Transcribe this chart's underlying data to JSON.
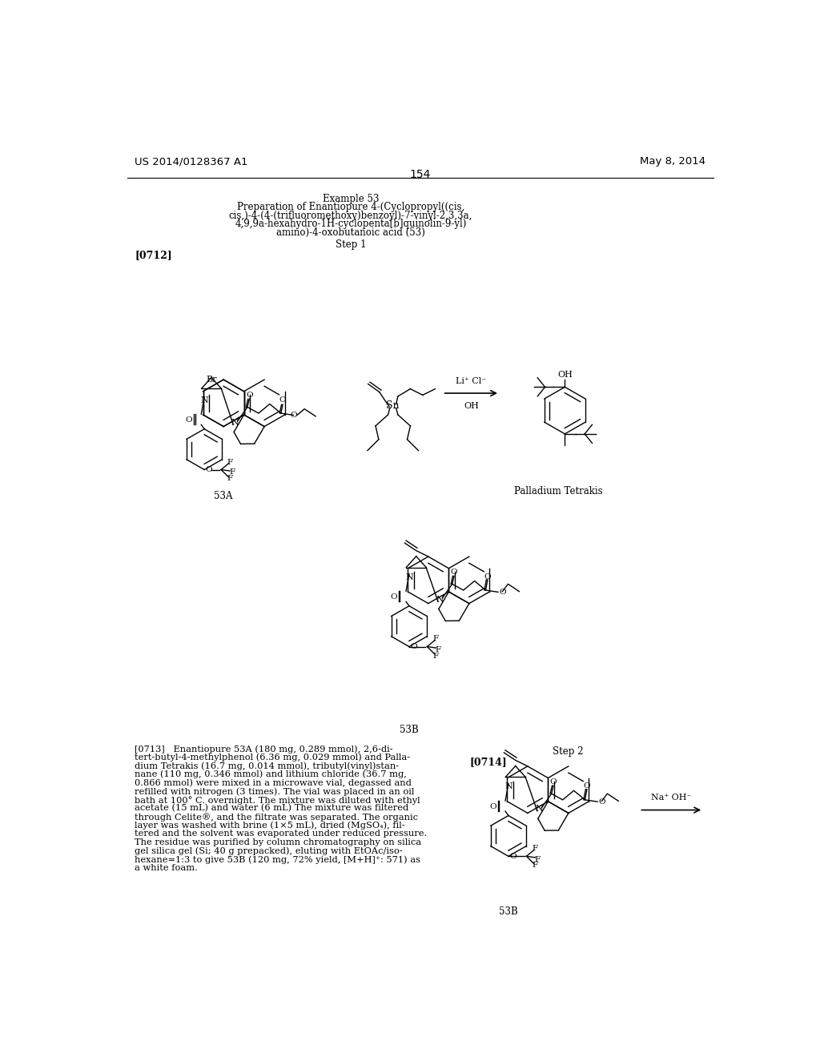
{
  "page_number": "154",
  "patent_number": "US 2014/0128367 A1",
  "patent_date": "May 8, 2014",
  "example_title": "Example 53",
  "preparation_text_lines": [
    "Preparation of Enantiopure 4-(Cyclopropyl((cis,",
    "cis,)-4-(4-(trifluoromethoxy)benzoyl)-7-vinyl-2,3,3a,",
    "4,9,9a-hexahydro-1H-cyclopenta[b]quinolin-9-yl)",
    "amino)-4-oxobutanoic acid (53)"
  ],
  "step1_text": "Step 1",
  "step2_text": "Step 2",
  "label_0712": "[0712]",
  "label_0713": "[0713]",
  "label_0714": "[0714]",
  "label_53A": "53A",
  "label_53B_mid": "53B",
  "label_53B_bot": "53B",
  "label_palladium": "Palladium Tetrakis",
  "text_0713_lines": [
    "[0713]   Enantiopure 53A (180 mg, 0.289 mmol), 2,6-di-",
    "tert-butyl-4-methylphenol (6.36 mg, 0.029 mmol) and Palla-",
    "dium Tetrakis (16.7 mg, 0.014 mmol), tributyl(vinyl)stan-",
    "nane (110 mg, 0.346 mmol) and lithium chloride (36.7 mg,",
    "0.866 mmol) were mixed in a microwave vial, degassed and",
    "refilled with nitrogen (3 times). The vial was placed in an oil",
    "bath at 100° C. overnight. The mixture was diluted with ethyl",
    "acetate (15 mL) and water (6 mL) The mixture was filtered",
    "through Celite®, and the filtrate was separated. The organic",
    "layer was washed with brine (1×5 mL), dried (MgSO₄), fil-",
    "tered and the solvent was evaporated under reduced pressure.",
    "The residue was purified by column chromatography on silica",
    "gel silica gel (Si; 40 g prepacked), eluting with EtOAc/iso-",
    "hexane=1:3 to give 53B (120 mg, 72% yield, [M+H]⁺: 571) as",
    "a white foam."
  ],
  "reagent_above": "Li⁺ Cl⁻",
  "reagent_below": "OH",
  "reagent_na_oh": "Na⁺ OH⁻",
  "background_color": "#ffffff",
  "text_color": "#000000"
}
